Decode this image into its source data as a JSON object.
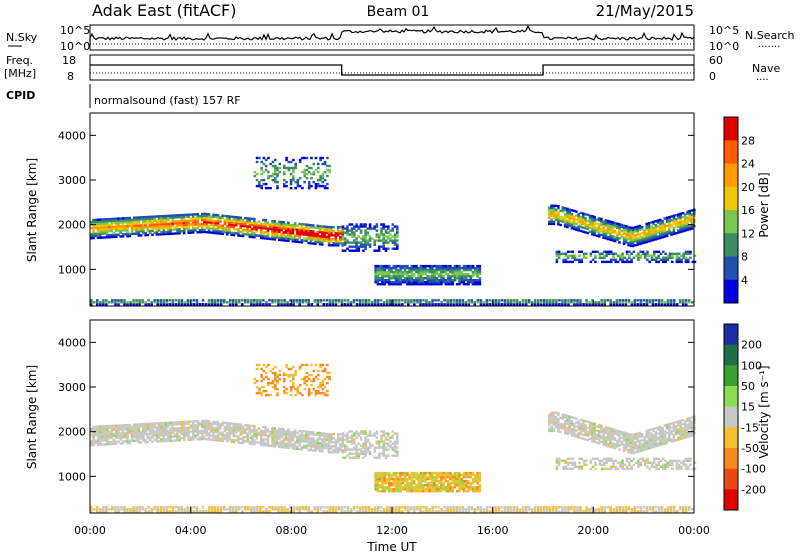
{
  "header": {
    "station": "Adak East (fitACF)",
    "beam": "Beam 01",
    "date": "21/May/2015"
  },
  "panels": {
    "nsky": {
      "label": "N.Sky",
      "left_ticks": [
        "10^5",
        "10^0"
      ],
      "right_ticks": [
        "10^5",
        "10^0"
      ],
      "right_label": "N.Search",
      "right_line": "......."
    },
    "freq": {
      "label_line1": "Freq.",
      "label_line2": "[MHz]",
      "left_ticks": [
        "18",
        "8"
      ],
      "right_ticks": [
        "60",
        "0"
      ],
      "right_label": "Nave",
      "right_line": "....",
      "cpid_label": "CPID",
      "cpid_text": "normalsound (fast) 157 RF"
    }
  },
  "chart_data": [
    {
      "type": "heatmap",
      "name": "power",
      "ylabel": "Slant Range [km]",
      "xlabel": "",
      "xlim": [
        "00:00",
        "00:00"
      ],
      "ylim": [
        180,
        4500
      ],
      "y_ticks": [
        1000,
        2000,
        3000,
        4000
      ],
      "x_ticks": [
        "00:00",
        "04:00",
        "08:00",
        "12:00",
        "16:00",
        "20:00",
        "00:00"
      ],
      "colorbar": {
        "label": "Power [dB]",
        "ticks": [
          "28",
          "24",
          "20",
          "16",
          "12",
          "8",
          "4"
        ],
        "colors": [
          "#e00000",
          "#ff5a00",
          "#ff9a00",
          "#f0c800",
          "#78c850",
          "#3c8c64",
          "#2050b0",
          "#0000e0"
        ]
      }
    },
    {
      "type": "heatmap",
      "name": "velocity",
      "ylabel": "Slant Range [km]",
      "xlabel": "Time UT",
      "xlim": [
        "00:00",
        "00:00"
      ],
      "ylim": [
        180,
        4500
      ],
      "y_ticks": [
        1000,
        2000,
        3000,
        4000
      ],
      "x_ticks": [
        "00:00",
        "04:00",
        "08:00",
        "12:00",
        "16:00",
        "20:00",
        "00:00"
      ],
      "colorbar": {
        "label": "Velocity [m s⁻¹]",
        "ticks": [
          "200",
          "100",
          "50",
          "15",
          "-15",
          "-50",
          "-100",
          "-200"
        ],
        "colors": [
          "#1a2fa0",
          "#1f6f4a",
          "#3aa032",
          "#8cdc50",
          "#c8c8c8",
          "#f5c030",
          "#f58a20",
          "#e84a10",
          "#e00000"
        ]
      }
    }
  ]
}
